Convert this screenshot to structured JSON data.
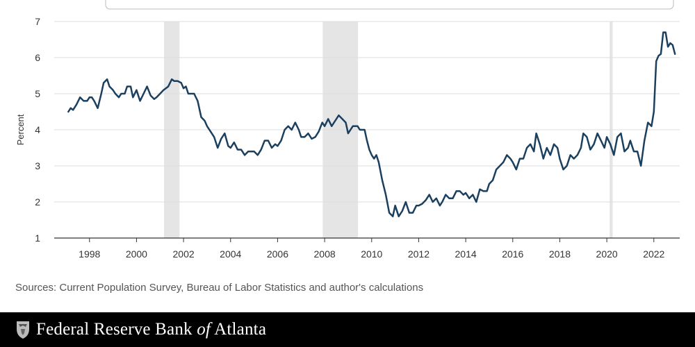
{
  "chart_data": {
    "type": "line",
    "title": "",
    "xlabel": "",
    "ylabel": "Percent",
    "xlim": [
      1996.5,
      2023.1
    ],
    "ylim": [
      1,
      7
    ],
    "grid": true,
    "x_ticks": [
      1998,
      2000,
      2002,
      2004,
      2006,
      2008,
      2010,
      2012,
      2014,
      2016,
      2018,
      2020,
      2022
    ],
    "x_tick_labels": [
      "1998",
      "2000",
      "2002",
      "2004",
      "2006",
      "2008",
      "2010",
      "2012",
      "2014",
      "2016",
      "2018",
      "2020",
      "2022"
    ],
    "y_ticks": [
      1,
      2,
      3,
      4,
      5,
      6,
      7
    ],
    "y_tick_labels": [
      "1",
      "2",
      "3",
      "4",
      "5",
      "6",
      "7"
    ],
    "recessions": [
      [
        2001.17,
        2001.83
      ],
      [
        2007.92,
        2009.42
      ],
      [
        2020.12,
        2020.25
      ]
    ],
    "series": [
      {
        "color": "#1b3f5e",
        "x": [
          1997.1,
          1997.2,
          1997.3,
          1997.45,
          1997.6,
          1997.75,
          1997.9,
          1998.0,
          1998.1,
          1998.2,
          1998.35,
          1998.5,
          1998.6,
          1998.75,
          1998.85,
          1999.0,
          1999.1,
          1999.25,
          1999.35,
          1999.5,
          1999.6,
          1999.75,
          1999.85,
          2000.0,
          2000.15,
          2000.3,
          2000.45,
          2000.6,
          2000.75,
          2000.85,
          2001.0,
          2001.15,
          2001.25,
          2001.35,
          2001.5,
          2001.6,
          2001.75,
          2001.9,
          2002.0,
          2002.1,
          2002.2,
          2002.35,
          2002.45,
          2002.6,
          2002.75,
          2002.9,
          2003.0,
          2003.15,
          2003.3,
          2003.45,
          2003.6,
          2003.75,
          2003.9,
          2004.0,
          2004.15,
          2004.3,
          2004.45,
          2004.6,
          2004.75,
          2004.9,
          2005.0,
          2005.15,
          2005.3,
          2005.45,
          2005.6,
          2005.75,
          2005.9,
          2006.0,
          2006.15,
          2006.3,
          2006.45,
          2006.6,
          2006.75,
          2006.9,
          2007.0,
          2007.15,
          2007.3,
          2007.45,
          2007.6,
          2007.75,
          2007.9,
          2008.0,
          2008.15,
          2008.3,
          2008.45,
          2008.6,
          2008.75,
          2008.9,
          2009.0,
          2009.1,
          2009.2,
          2009.3,
          2009.4,
          2009.5,
          2009.6,
          2009.7,
          2009.8,
          2009.9,
          2010.0,
          2010.1,
          2010.2,
          2010.3,
          2010.45,
          2010.6,
          2010.75,
          2010.9,
          2011.0,
          2011.15,
          2011.3,
          2011.45,
          2011.6,
          2011.75,
          2011.9,
          2012.0,
          2012.15,
          2012.3,
          2012.45,
          2012.6,
          2012.75,
          2012.9,
          2013.0,
          2013.15,
          2013.3,
          2013.45,
          2013.6,
          2013.75,
          2013.9,
          2014.0,
          2014.15,
          2014.3,
          2014.45,
          2014.6,
          2014.75,
          2014.9,
          2015.0,
          2015.15,
          2015.3,
          2015.45,
          2015.6,
          2015.75,
          2015.9,
          2016.0,
          2016.15,
          2016.3,
          2016.45,
          2016.6,
          2016.75,
          2016.9,
          2017.0,
          2017.15,
          2017.3,
          2017.45,
          2017.6,
          2017.75,
          2017.9,
          2018.0,
          2018.15,
          2018.3,
          2018.45,
          2018.6,
          2018.75,
          2018.9,
          2019.0,
          2019.15,
          2019.3,
          2019.45,
          2019.6,
          2019.75,
          2019.9,
          2020.0,
          2020.15,
          2020.3,
          2020.45,
          2020.6,
          2020.75,
          2020.9,
          2021.0,
          2021.15,
          2021.3,
          2021.45,
          2021.6,
          2021.75,
          2021.9,
          2022.0,
          2022.1,
          2022.2,
          2022.3,
          2022.4,
          2022.5,
          2022.6,
          2022.7,
          2022.8,
          2022.9
        ],
        "y": [
          4.5,
          4.6,
          4.55,
          4.7,
          4.9,
          4.8,
          4.8,
          4.9,
          4.9,
          4.8,
          4.6,
          5.0,
          5.3,
          5.4,
          5.2,
          5.1,
          5.0,
          4.9,
          5.0,
          5.0,
          5.2,
          5.2,
          4.9,
          5.1,
          4.8,
          5.0,
          5.2,
          4.95,
          4.85,
          4.9,
          5.0,
          5.1,
          5.15,
          5.2,
          5.4,
          5.35,
          5.35,
          5.3,
          5.15,
          5.2,
          5.0,
          5.0,
          5.0,
          4.8,
          4.35,
          4.25,
          4.1,
          3.95,
          3.8,
          3.5,
          3.75,
          3.9,
          3.55,
          3.5,
          3.65,
          3.45,
          3.45,
          3.3,
          3.4,
          3.4,
          3.4,
          3.3,
          3.45,
          3.7,
          3.7,
          3.5,
          3.6,
          3.55,
          3.7,
          4.0,
          4.1,
          4.0,
          4.2,
          4.0,
          3.8,
          3.8,
          3.9,
          3.75,
          3.8,
          3.95,
          4.2,
          4.1,
          4.3,
          4.1,
          4.25,
          4.4,
          4.3,
          4.2,
          3.9,
          4.0,
          4.1,
          4.1,
          4.1,
          4.0,
          4.0,
          4.0,
          3.7,
          3.45,
          3.3,
          3.2,
          3.3,
          3.1,
          2.6,
          2.2,
          1.7,
          1.6,
          1.9,
          1.6,
          1.75,
          2.0,
          1.7,
          1.7,
          1.9,
          1.9,
          1.95,
          2.05,
          2.2,
          2.0,
          2.1,
          1.9,
          2.0,
          2.2,
          2.1,
          2.1,
          2.3,
          2.3,
          2.2,
          2.25,
          2.1,
          2.2,
          2.0,
          2.35,
          2.3,
          2.3,
          2.5,
          2.6,
          2.9,
          3.0,
          3.1,
          3.3,
          3.2,
          3.1,
          2.9,
          3.2,
          3.2,
          3.5,
          3.6,
          3.4,
          3.9,
          3.6,
          3.2,
          3.5,
          3.3,
          3.6,
          3.5,
          3.2,
          2.9,
          3.0,
          3.3,
          3.2,
          3.3,
          3.5,
          3.9,
          3.8,
          3.45,
          3.6,
          3.9,
          3.7,
          3.5,
          3.8,
          3.6,
          3.3,
          3.8,
          3.9,
          3.4,
          3.5,
          3.7,
          3.4,
          3.4,
          3.0,
          3.7,
          4.2,
          4.1,
          4.5,
          5.9,
          6.05,
          6.1,
          6.7,
          6.7,
          6.3,
          6.4,
          6.35,
          6.1
        ]
      }
    ]
  },
  "source_note": "Sources: Current Population Survey, Bureau of Labor Statistics and author's calculations",
  "footer": {
    "org_before": "Federal Reserve Bank ",
    "org_of": "of",
    "org_after": " Atlanta"
  },
  "colors": {
    "line": "#1b3f5e",
    "recession_shade": "#e5e5e5",
    "gridline": "#dddddd",
    "footer_bg": "#000000"
  }
}
